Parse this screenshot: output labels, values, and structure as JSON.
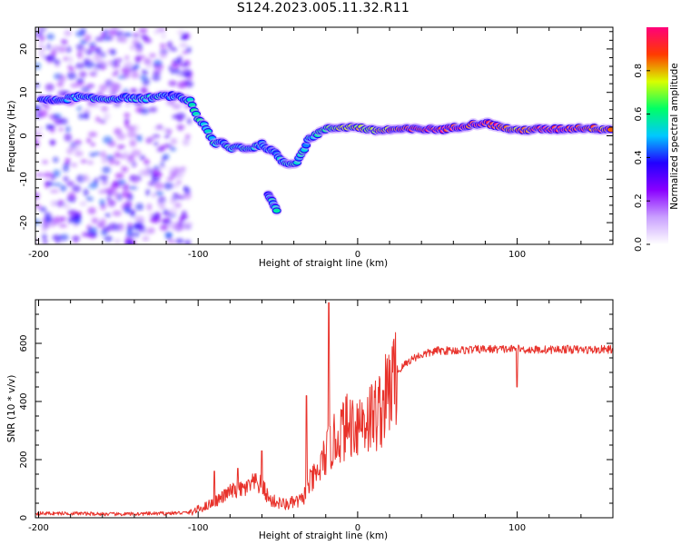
{
  "figure": {
    "title": "S124.2023.005.11.32.R11"
  },
  "chart_data": [
    {
      "type": "heatmap",
      "title": "S124.2023.005.11.32.R11",
      "xlabel": "Height of straight line (km)",
      "ylabel": "Frequency (Hz)",
      "xlim": [
        -202,
        160
      ],
      "ylim": [
        -25,
        25
      ],
      "x_ticks": [
        -200,
        -100,
        0,
        100
      ],
      "y_ticks": [
        -20,
        -10,
        0,
        10,
        20
      ],
      "colorbar": {
        "label": "Normalized spectral amplitude",
        "range": [
          0.0,
          1.0
        ],
        "ticks": [
          "0.0",
          "0.2",
          "0.4",
          "0.6",
          "0.8"
        ],
        "colormap": [
          "#ffffff",
          "#c9a0ff",
          "#8a00ff",
          "#2200ff",
          "#00c8ff",
          "#00ff66",
          "#d8ff00",
          "#ff3b00",
          "#ff007a"
        ]
      },
      "ridge": [
        {
          "x": -198,
          "f": 8.5,
          "a": 0.45
        },
        {
          "x": -190,
          "f": 8.0,
          "a": 0.4
        },
        {
          "x": -175,
          "f": 9.0,
          "a": 0.5
        },
        {
          "x": -165,
          "f": 8.5,
          "a": 0.5
        },
        {
          "x": -155,
          "f": 8.5,
          "a": 0.55
        },
        {
          "x": -145,
          "f": 8.8,
          "a": 0.45
        },
        {
          "x": -135,
          "f": 8.5,
          "a": 0.5
        },
        {
          "x": -125,
          "f": 9.0,
          "a": 0.5
        },
        {
          "x": -115,
          "f": 9.2,
          "a": 0.45
        },
        {
          "x": -105,
          "f": 8.0,
          "a": 0.5
        },
        {
          "x": -100,
          "f": 4.0,
          "a": 0.55
        },
        {
          "x": -95,
          "f": 2.0,
          "a": 0.5
        },
        {
          "x": -90,
          "f": -2.0,
          "a": 0.55
        },
        {
          "x": -85,
          "f": -1.5,
          "a": 0.5
        },
        {
          "x": -80,
          "f": -3.0,
          "a": 0.5
        },
        {
          "x": -75,
          "f": -2.5,
          "a": 0.5
        },
        {
          "x": -68,
          "f": -3.0,
          "a": 0.55
        },
        {
          "x": -60,
          "f": -2.0,
          "a": 0.5
        },
        {
          "x": -52,
          "f": -4.0,
          "a": 0.5
        },
        {
          "x": -45,
          "f": -6.5,
          "a": 0.55
        },
        {
          "x": -38,
          "f": -6.0,
          "a": 0.55
        },
        {
          "x": -30,
          "f": -0.5,
          "a": 0.5
        },
        {
          "x": -20,
          "f": 1.5,
          "a": 0.6
        },
        {
          "x": -10,
          "f": 2.0,
          "a": 0.7
        },
        {
          "x": 0,
          "f": 2.0,
          "a": 0.75
        },
        {
          "x": 10,
          "f": 1.2,
          "a": 0.75
        },
        {
          "x": 25,
          "f": 1.5,
          "a": 0.85
        },
        {
          "x": 40,
          "f": 1.5,
          "a": 0.95
        },
        {
          "x": 55,
          "f": 1.5,
          "a": 0.95
        },
        {
          "x": 70,
          "f": 2.5,
          "a": 0.9
        },
        {
          "x": 80,
          "f": 3.0,
          "a": 1.0
        },
        {
          "x": 90,
          "f": 2.0,
          "a": 0.9
        },
        {
          "x": 100,
          "f": 1.2,
          "a": 0.8
        },
        {
          "x": 110,
          "f": 1.5,
          "a": 0.9
        },
        {
          "x": 125,
          "f": 1.5,
          "a": 0.95
        },
        {
          "x": 140,
          "f": 1.8,
          "a": 0.9
        },
        {
          "x": 160,
          "f": 1.5,
          "a": 0.85
        }
      ],
      "branch": [
        {
          "x": -56,
          "f": -13.5,
          "a": 0.45
        },
        {
          "x": -53,
          "f": -15.5,
          "a": 0.5
        },
        {
          "x": -50,
          "f": -17.5,
          "a": 0.5
        }
      ],
      "noise_region": {
        "x_from": -202,
        "x_to": -105,
        "f_from": -25,
        "f_to": 25,
        "max_amplitude": 0.35
      }
    },
    {
      "type": "line",
      "xlabel": "Height of straight line (km)",
      "ylabel": "SNR (10 * v/v)",
      "xlim": [
        -202,
        160
      ],
      "ylim": [
        0,
        750
      ],
      "x_ticks": [
        -200,
        -100,
        0,
        100
      ],
      "y_ticks": [
        0,
        200,
        400,
        600
      ],
      "line_color": "#e8322b",
      "series": [
        {
          "name": "SNR",
          "points": [
            {
              "x": -202,
              "y": 15
            },
            {
              "x": -180,
              "y": 15
            },
            {
              "x": -150,
              "y": 12
            },
            {
              "x": -120,
              "y": 15
            },
            {
              "x": -105,
              "y": 18
            },
            {
              "x": -95,
              "y": 40
            },
            {
              "x": -85,
              "y": 70
            },
            {
              "x": -80,
              "y": 90
            },
            {
              "x": -70,
              "y": 100
            },
            {
              "x": -65,
              "y": 120
            },
            {
              "x": -60,
              "y": 110
            },
            {
              "x": -55,
              "y": 60
            },
            {
              "x": -45,
              "y": 45
            },
            {
              "x": -35,
              "y": 60
            },
            {
              "x": -30,
              "y": 120
            },
            {
              "x": -25,
              "y": 150
            },
            {
              "x": -20,
              "y": 220
            },
            {
              "x": -15,
              "y": 260
            },
            {
              "x": -10,
              "y": 300
            },
            {
              "x": -5,
              "y": 320
            },
            {
              "x": 0,
              "y": 330
            },
            {
              "x": 5,
              "y": 340
            },
            {
              "x": 10,
              "y": 350
            },
            {
              "x": 15,
              "y": 380
            },
            {
              "x": 20,
              "y": 440
            },
            {
              "x": 25,
              "y": 500
            },
            {
              "x": 30,
              "y": 530
            },
            {
              "x": 35,
              "y": 550
            },
            {
              "x": 40,
              "y": 560
            },
            {
              "x": 50,
              "y": 575
            },
            {
              "x": 60,
              "y": 575
            },
            {
              "x": 70,
              "y": 578
            },
            {
              "x": 80,
              "y": 580
            },
            {
              "x": 90,
              "y": 580
            },
            {
              "x": 100,
              "y": 580
            },
            {
              "x": 110,
              "y": 578
            },
            {
              "x": 120,
              "y": 578
            },
            {
              "x": 130,
              "y": 580
            },
            {
              "x": 140,
              "y": 578
            },
            {
              "x": 150,
              "y": 578
            },
            {
              "x": 160,
              "y": 580
            }
          ],
          "spikes": [
            {
              "x": -90,
              "y": 160
            },
            {
              "x": -75,
              "y": 170
            },
            {
              "x": -60,
              "y": 230
            },
            {
              "x": -32,
              "y": 420
            },
            {
              "x": -18,
              "y": 740
            },
            {
              "x": 100,
              "y": 450
            }
          ]
        }
      ]
    }
  ]
}
